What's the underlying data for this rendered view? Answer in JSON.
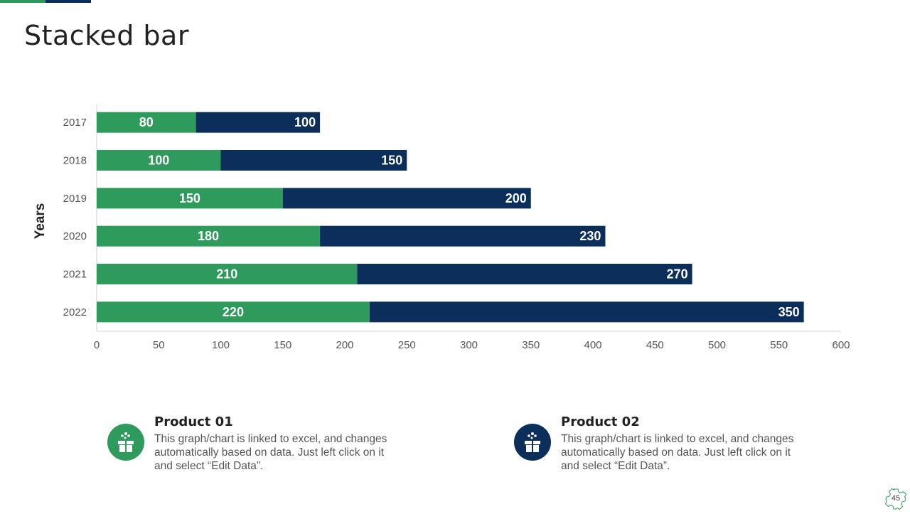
{
  "title": "Stacked bar",
  "colors": {
    "green": "#2e9a5c",
    "navy": "#0b2f5a"
  },
  "chart_data": {
    "type": "bar",
    "orientation": "horizontal",
    "stacked": true,
    "categories": [
      "2017",
      "2018",
      "2019",
      "2020",
      "2021",
      "2022"
    ],
    "series": [
      {
        "values": [
          80,
          100,
          150,
          180,
          210,
          220
        ],
        "color": "#2e9a5c"
      },
      {
        "values": [
          100,
          150,
          200,
          230,
          270,
          350
        ],
        "color": "#0b2f5a"
      }
    ],
    "ylabel": "Years",
    "xlim": [
      0,
      600
    ],
    "xticks": [
      0,
      50,
      100,
      150,
      200,
      250,
      300,
      350,
      400,
      450,
      500,
      550,
      600
    ],
    "grid": false
  },
  "products": [
    {
      "title": "Product 01",
      "text": "This graph/chart is linked to excel, and changes automatically based on data. Just left click on it and select “Edit Data”.",
      "icon": "gift-box-icon"
    },
    {
      "title": "Product 02",
      "text": "This graph/chart is linked to excel, and changes automatically based on data. Just left click on it and select “Edit Data”.",
      "icon": "gift-box-icon"
    }
  ],
  "page_number": "45"
}
